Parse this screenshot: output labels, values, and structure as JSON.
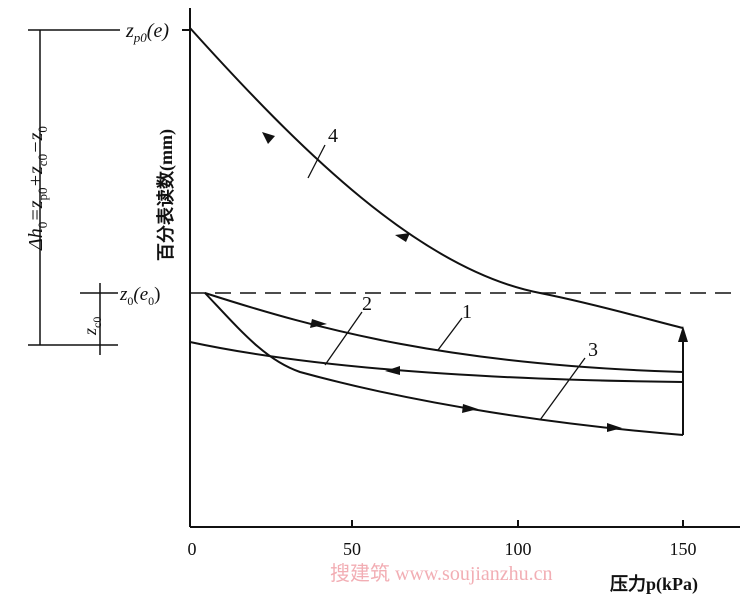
{
  "y_axis": {
    "title": "百分表读数(mm)",
    "top_label": {
      "main": "z",
      "sub": "p0",
      "rest": "(e)"
    },
    "mid_label": {
      "main": "z",
      "sub": "0",
      "rest": "(e",
      "rest_sub": "0",
      "close": ")"
    }
  },
  "x_axis": {
    "title": "压力p(kPa)",
    "ticks": [
      "0",
      "50",
      "100",
      "150"
    ]
  },
  "curves": [
    "1",
    "2",
    "3",
    "4"
  ],
  "delta_label": [
    "Δh",
    "0",
    "=z",
    "p0",
    "+z",
    "c0",
    "−z",
    "0"
  ],
  "zc0_label": [
    "z",
    "c0"
  ],
  "watermark": "搜建筑 www.soujianzhu.cn"
}
